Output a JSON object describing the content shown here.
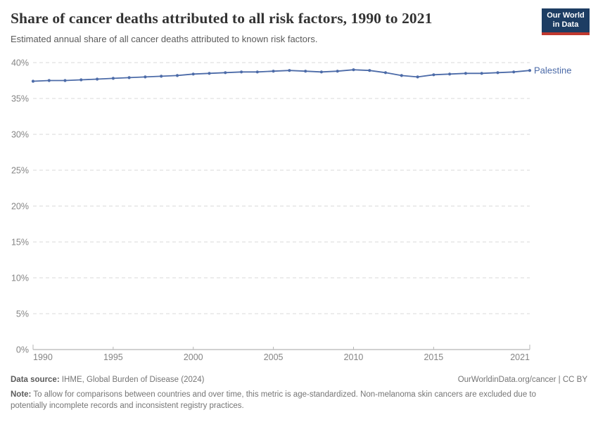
{
  "header": {
    "title": "Share of cancer deaths attributed to all risk factors, 1990 to 2021",
    "subtitle": "Estimated annual share of all cancer deaths attributed to known risk factors.",
    "logo": {
      "line1": "Our World",
      "line2": "in Data",
      "bg_color": "#1d3d63",
      "stripe_color": "#c0382e"
    }
  },
  "chart_data": {
    "type": "line",
    "title": "Share of cancer deaths attributed to all risk factors, 1990 to 2021",
    "x": [
      1990,
      1991,
      1992,
      1993,
      1994,
      1995,
      1996,
      1997,
      1998,
      1999,
      2000,
      2001,
      2002,
      2003,
      2004,
      2005,
      2006,
      2007,
      2008,
      2009,
      2010,
      2011,
      2012,
      2013,
      2014,
      2015,
      2016,
      2017,
      2018,
      2019,
      2020,
      2021
    ],
    "series": [
      {
        "name": "Palestine",
        "color": "#4c6ba8",
        "values": [
          37.4,
          37.5,
          37.5,
          37.6,
          37.7,
          37.8,
          37.9,
          38.0,
          38.1,
          38.2,
          38.4,
          38.5,
          38.6,
          38.7,
          38.7,
          38.8,
          38.9,
          38.8,
          38.7,
          38.8,
          39.0,
          38.9,
          38.6,
          38.2,
          38.0,
          38.3,
          38.4,
          38.5,
          38.5,
          38.6,
          38.7,
          38.9
        ]
      }
    ],
    "xlabel": "",
    "ylabel": "",
    "ylim": [
      0,
      40
    ],
    "yticks": [
      0,
      5,
      10,
      15,
      20,
      25,
      30,
      35,
      40
    ],
    "ytick_suffix": "%",
    "xticks": [
      1990,
      1995,
      2000,
      2005,
      2010,
      2015,
      2021
    ],
    "grid": "horizontal-dashed",
    "legend": "end-of-line-label",
    "grid_color": "#d9d9d9",
    "axis_color": "#a3a3a3",
    "tick_label_color": "#858585"
  },
  "footer": {
    "datasource_label": "Data source:",
    "datasource_value": " IHME, Global Burden of Disease (2024)",
    "credit": "OurWorldinData.org/cancer | CC BY",
    "note_label": "Note:",
    "note_value": " To allow for comparisons between countries and over time, this metric is age-standardized. Non-melanoma skin cancers are excluded due to potentially incomplete records and inconsistent registry practices."
  }
}
